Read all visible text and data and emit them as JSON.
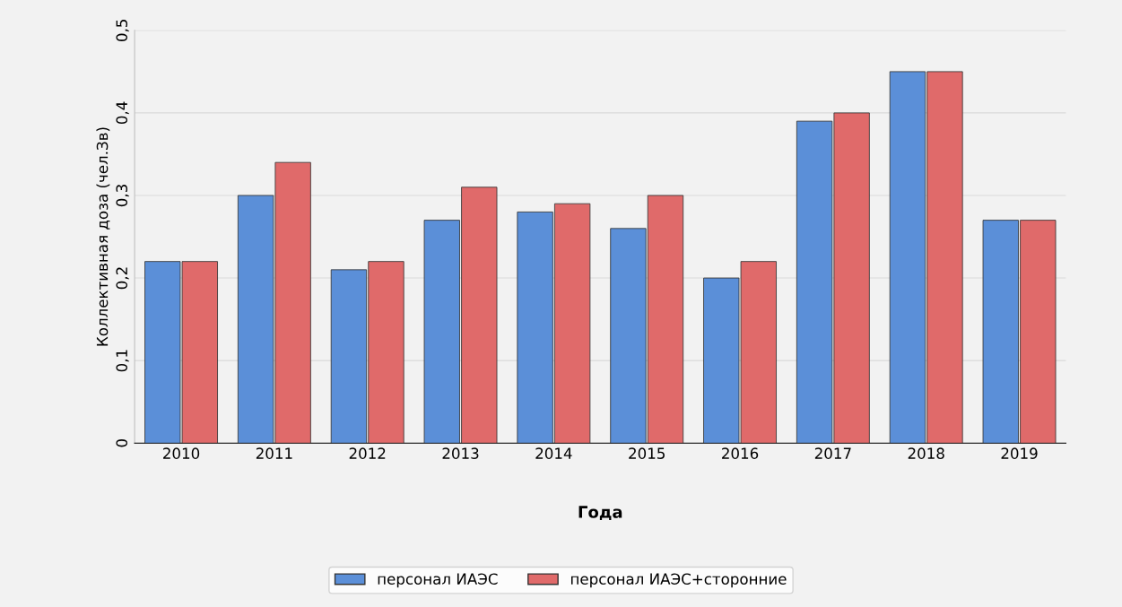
{
  "chart_data": {
    "type": "bar",
    "xlabel": "Года",
    "ylabel": "Коллективная доза (чел.Зв)",
    "categories": [
      "2010",
      "2011",
      "2012",
      "2013",
      "2014",
      "2015",
      "2016",
      "2017",
      "2018",
      "2019"
    ],
    "series": [
      {
        "name": "персонал ИАЭС",
        "color": "#5b8fd8",
        "values": [
          0.22,
          0.3,
          0.21,
          0.27,
          0.28,
          0.26,
          0.2,
          0.39,
          0.45,
          0.27
        ]
      },
      {
        "name": "персонал ИАЭС+сторонние",
        "color": "#e06a6a",
        "values": [
          0.22,
          0.34,
          0.22,
          0.31,
          0.29,
          0.3,
          0.22,
          0.4,
          0.45,
          0.27
        ]
      }
    ],
    "ylim": [
      0,
      0.5
    ],
    "yticks": [
      0,
      {
        "value": 0.1,
        "label": "0,1"
      },
      {
        "value": 0.2,
        "label": "0,2"
      },
      {
        "value": 0.3,
        "label": "0,3"
      },
      {
        "value": 0.4,
        "label": "0,4"
      },
      {
        "value": 0.5,
        "label": "0,5"
      }
    ],
    "grid": "y",
    "legend": "bottom"
  }
}
